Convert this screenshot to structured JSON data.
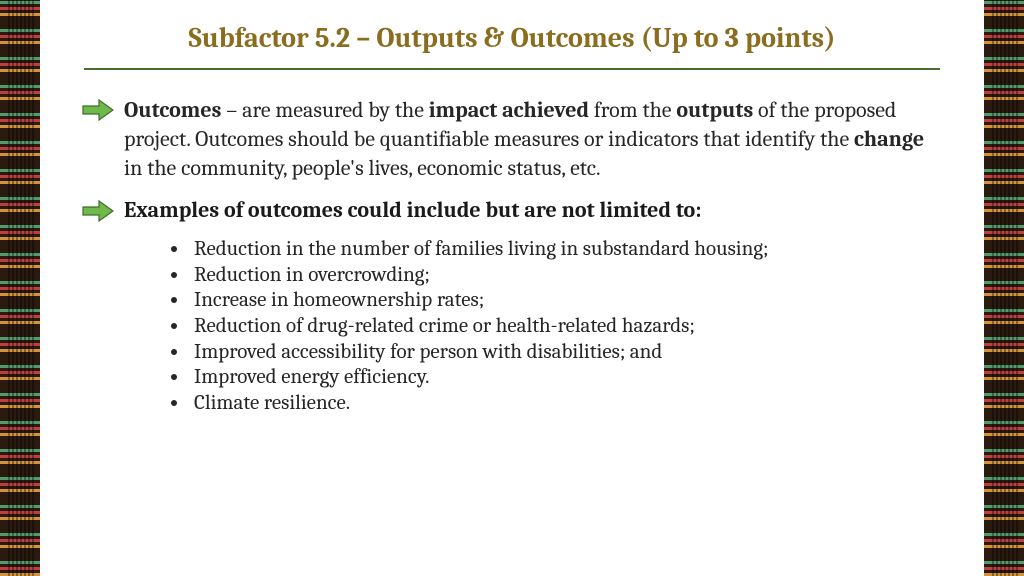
{
  "colors": {
    "title": "#8a6d1f",
    "rule": "#4b6b2f",
    "arrow_fill": "#6fb84a",
    "arrow_stroke": "#3f6e2a",
    "text": "#262626",
    "background": "#ffffff"
  },
  "title": "Subfactor 5.2 – Outputs & Outcomes (Up to 3 points)",
  "para1": {
    "segments": [
      {
        "text": "Outcomes",
        "bold": true
      },
      {
        "text": " – are measured by the ",
        "bold": false
      },
      {
        "text": "impact achieved",
        "bold": true
      },
      {
        "text": " from the ",
        "bold": false
      },
      {
        "text": "outputs",
        "bold": true
      },
      {
        "text": " of the proposed project. Outcomes should be quantifiable measures or indicators that identify the ",
        "bold": false
      },
      {
        "text": "change",
        "bold": true
      },
      {
        "text": " in the community, people's lives, economic status, etc.",
        "bold": false
      }
    ]
  },
  "examples_label": "Examples of outcomes could include but are not limited to:",
  "bullets": [
    "Reduction in the number of families living in substandard housing;",
    "Reduction in overcrowding;",
    "Increase in homeownership rates;",
    "Reduction of drug-related crime or health-related hazards;",
    "Improved accessibility for person with disabilities; and",
    "Improved energy efficiency.",
    "Climate resilience."
  ],
  "typography": {
    "title_fontsize": 28,
    "body_fontsize": 22,
    "bullet_fontsize": 21,
    "font_family": "Cambria / Georgia serif"
  },
  "layout": {
    "slide_width": 1024,
    "slide_height": 576,
    "border_strip_width": 40
  }
}
